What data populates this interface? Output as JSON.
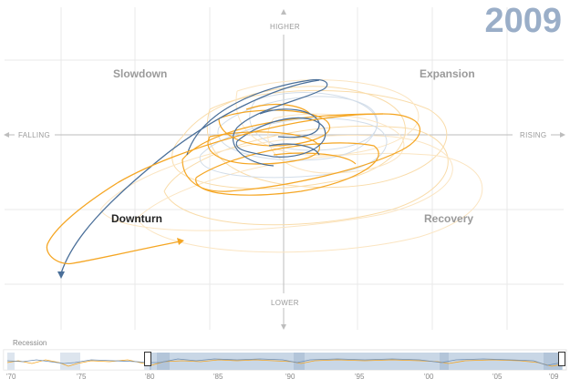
{
  "chart": {
    "year": "2009",
    "axis": {
      "higher": "HIGHER",
      "lower": "LOWER",
      "falling": "FALLING",
      "rising": "RISING"
    },
    "quadrants": {
      "top_left": "Slowdown",
      "top_right": "Expansion",
      "bottom_left": "Downturn",
      "bottom_right": "Recovery",
      "active": "bottom_left"
    },
    "colors": {
      "orange": "#f5a623",
      "blue": "#4a6f99",
      "grid": "#e6e6e6",
      "axis": "#c0c0c0",
      "year": "#9aaec8"
    }
  },
  "timeline": {
    "recession_label": "Recession",
    "ticks": [
      "'70",
      "'75",
      "'80",
      "'85",
      "'90",
      "'95",
      "'00",
      "'05",
      "'09"
    ],
    "selection": [
      "'80",
      "'09"
    ]
  }
}
